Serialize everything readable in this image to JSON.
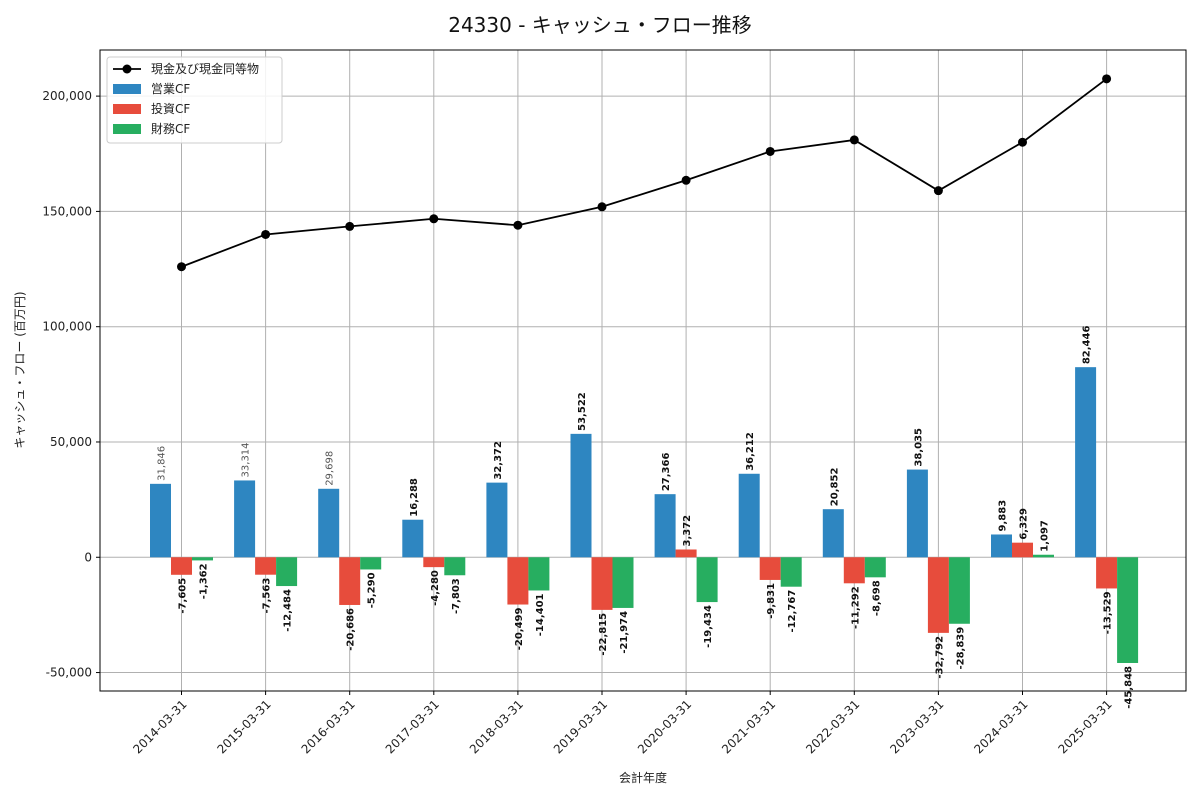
{
  "chart_data": {
    "type": "bar",
    "title": "24330 - キャッシュ・フロー推移",
    "xlabel": "会計年度",
    "ylabel": "キャッシュ・フロー (百万円)",
    "ylim": [
      -58000,
      220000
    ],
    "yticks": [
      -50000,
      0,
      50000,
      100000,
      150000,
      200000
    ],
    "ytick_labels": [
      "-50,000",
      "0",
      "50,000",
      "100,000",
      "150,000",
      "200,000"
    ],
    "grid": true,
    "legend_position": "top-left",
    "categories": [
      "2014-03-31",
      "2015-03-31",
      "2016-03-31",
      "2017-03-31",
      "2018-03-31",
      "2019-03-31",
      "2020-03-31",
      "2021-03-31",
      "2022-03-31",
      "2023-03-31",
      "2024-03-31",
      "2025-03-31"
    ],
    "series": [
      {
        "name": "営業CF",
        "kind": "bar",
        "color": "#2e86c1",
        "values": [
          31846,
          33314,
          29698,
          16288,
          32372,
          53522,
          27366,
          36212,
          20852,
          38035,
          9883,
          82446
        ],
        "labels": [
          "31,846",
          "33,314",
          "29,698",
          "16,288",
          "32,372",
          "53,522",
          "27,366",
          "36,212",
          "20,852",
          "38,035",
          "9,883",
          "82,446"
        ]
      },
      {
        "name": "投資CF",
        "kind": "bar",
        "color": "#e74c3c",
        "values": [
          -7605,
          -7563,
          -20686,
          -4280,
          -20499,
          -22815,
          3372,
          -9831,
          -11292,
          -32792,
          6329,
          -13529
        ],
        "labels": [
          "-7,605",
          "-7,563",
          "-20,686",
          "-4,280",
          "-20,499",
          "-22,815",
          "3,372",
          "-9,831",
          "-11,292",
          "-32,792",
          "6,329",
          "-13,529"
        ]
      },
      {
        "name": "財務CF",
        "kind": "bar",
        "color": "#27ae60",
        "values": [
          -1362,
          -12484,
          -5290,
          -7803,
          -14401,
          -21974,
          -19434,
          -12767,
          -8698,
          -28839,
          1097,
          -45848
        ],
        "labels": [
          "-1,362",
          "-12,484",
          "-5,290",
          "-7,803",
          "-14,401",
          "-21,974",
          "-19,434",
          "-12,767",
          "-8,698",
          "-28,839",
          "1,097",
          "-45,848"
        ]
      },
      {
        "name": "現金及び現金同等物",
        "kind": "line",
        "color": "#000000",
        "values": [
          126000,
          140000,
          143500,
          146800,
          144000,
          152000,
          163500,
          176000,
          181000,
          159000,
          180000,
          207500
        ]
      }
    ]
  }
}
